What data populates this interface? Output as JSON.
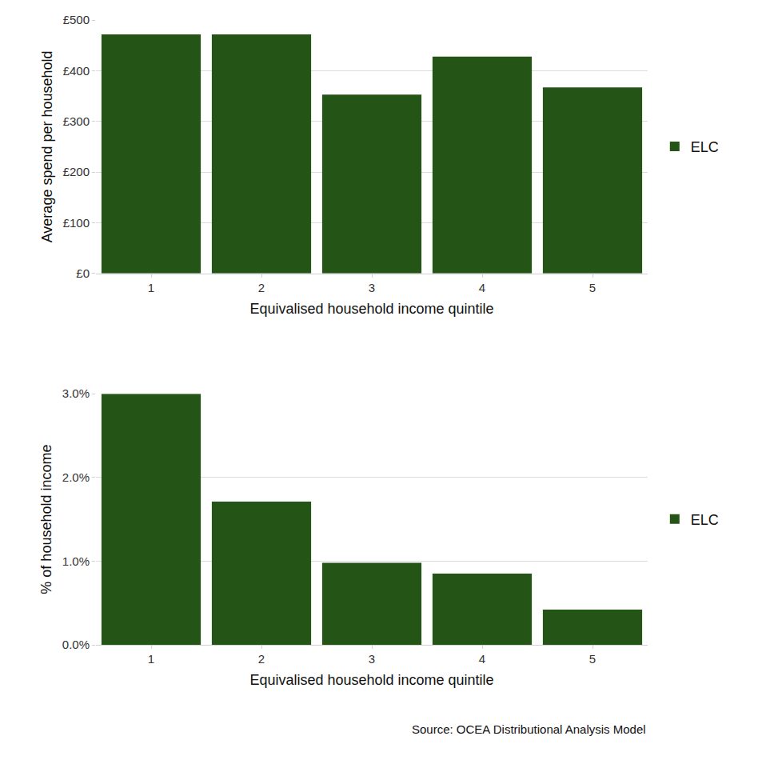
{
  "chart_data": [
    {
      "type": "bar",
      "y_label": "Average spend per household",
      "x_label": "Equivalised household income quintile",
      "categories": [
        "1",
        "2",
        "3",
        "4",
        "5"
      ],
      "series": [
        {
          "name": "ELC",
          "color": "#245517",
          "values": [
            472,
            472,
            353,
            428,
            367
          ]
        }
      ],
      "ylim": [
        0,
        500
      ],
      "yticks": [
        {
          "value": 0,
          "label": "£0"
        },
        {
          "value": 100,
          "label": "£100"
        },
        {
          "value": 200,
          "label": "£200"
        },
        {
          "value": 300,
          "label": "£300"
        },
        {
          "value": 400,
          "label": "£400"
        },
        {
          "value": 500,
          "label": "£500"
        }
      ],
      "grid": true,
      "legend": "right"
    },
    {
      "type": "bar",
      "y_label": "% of household income",
      "x_label": "Equivalised household income quintile",
      "categories": [
        "1",
        "2",
        "3",
        "4",
        "5"
      ],
      "series": [
        {
          "name": "ELC",
          "color": "#245517",
          "values": [
            3.0,
            1.71,
            0.98,
            0.85,
            0.42
          ]
        }
      ],
      "ylim": [
        0,
        3
      ],
      "yticks": [
        {
          "value": 0,
          "label": "0.0%"
        },
        {
          "value": 1,
          "label": "1.0%"
        },
        {
          "value": 2,
          "label": "2.0%"
        },
        {
          "value": 3,
          "label": "3.0%"
        }
      ],
      "grid": true,
      "legend": "right",
      "annotations": [
        "Source: OCEA Distributional Analysis Model"
      ]
    }
  ]
}
